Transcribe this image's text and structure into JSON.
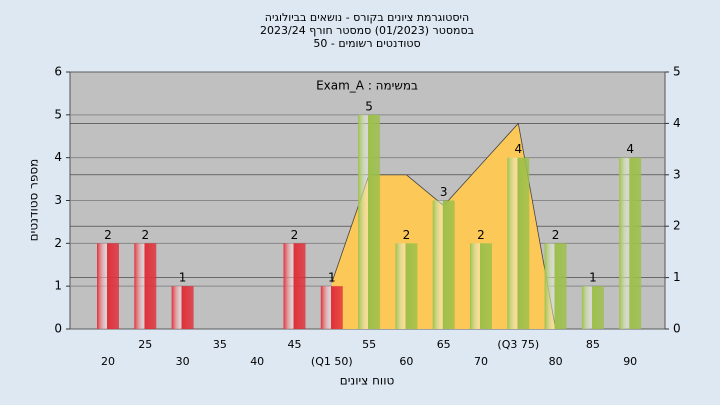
{
  "chart_data": {
    "type": "bar",
    "title_lines": [
      "היסטוגרמת ציונים בקורס - נושאים בביולוגיה",
      "בסמסטר (01/2023) סמסטר חורף 2023/24",
      "סטודנטים רשומים - 50"
    ],
    "annotation": "Exam_A : במשימה",
    "x_label": "טווח ציונים",
    "y_label": "מספר סטודנטים",
    "categories": [
      "20",
      "25",
      "30",
      "35",
      "40",
      "45",
      "(Q1 50)",
      "55",
      "60",
      "65",
      "70",
      "(Q3 75)",
      "80",
      "85",
      "90"
    ],
    "series": [
      {
        "values": [
          2,
          2,
          1,
          null,
          null,
          2,
          1,
          5,
          2,
          3,
          2,
          4,
          2,
          1,
          4
        ],
        "colors": [
          "#e0303a",
          "#e0303a",
          "#e0303a",
          "#e0303a",
          "#e0303a",
          "#e0303a",
          "#e0303a",
          "#9dc04a",
          "#9dc04a",
          "#9dc04a",
          "#9dc04a",
          "#9dc04a",
          "#9dc04a",
          "#9dc04a",
          "#9dc04a"
        ]
      },
      {
        "type": "area",
        "axis": "y2",
        "color": "#fcc857",
        "values": [
          null,
          null,
          null,
          null,
          null,
          null,
          0.9,
          3,
          3,
          2.4,
          3.2,
          4,
          0,
          null,
          null
        ]
      }
    ],
    "ylim": [
      0,
      6
    ],
    "yticks": [
      0,
      1,
      2,
      3,
      4,
      5,
      6
    ],
    "y2lim": [
      0,
      5
    ],
    "y2ticks": [
      0,
      1,
      2,
      3,
      4,
      5
    ],
    "grid": true
  }
}
